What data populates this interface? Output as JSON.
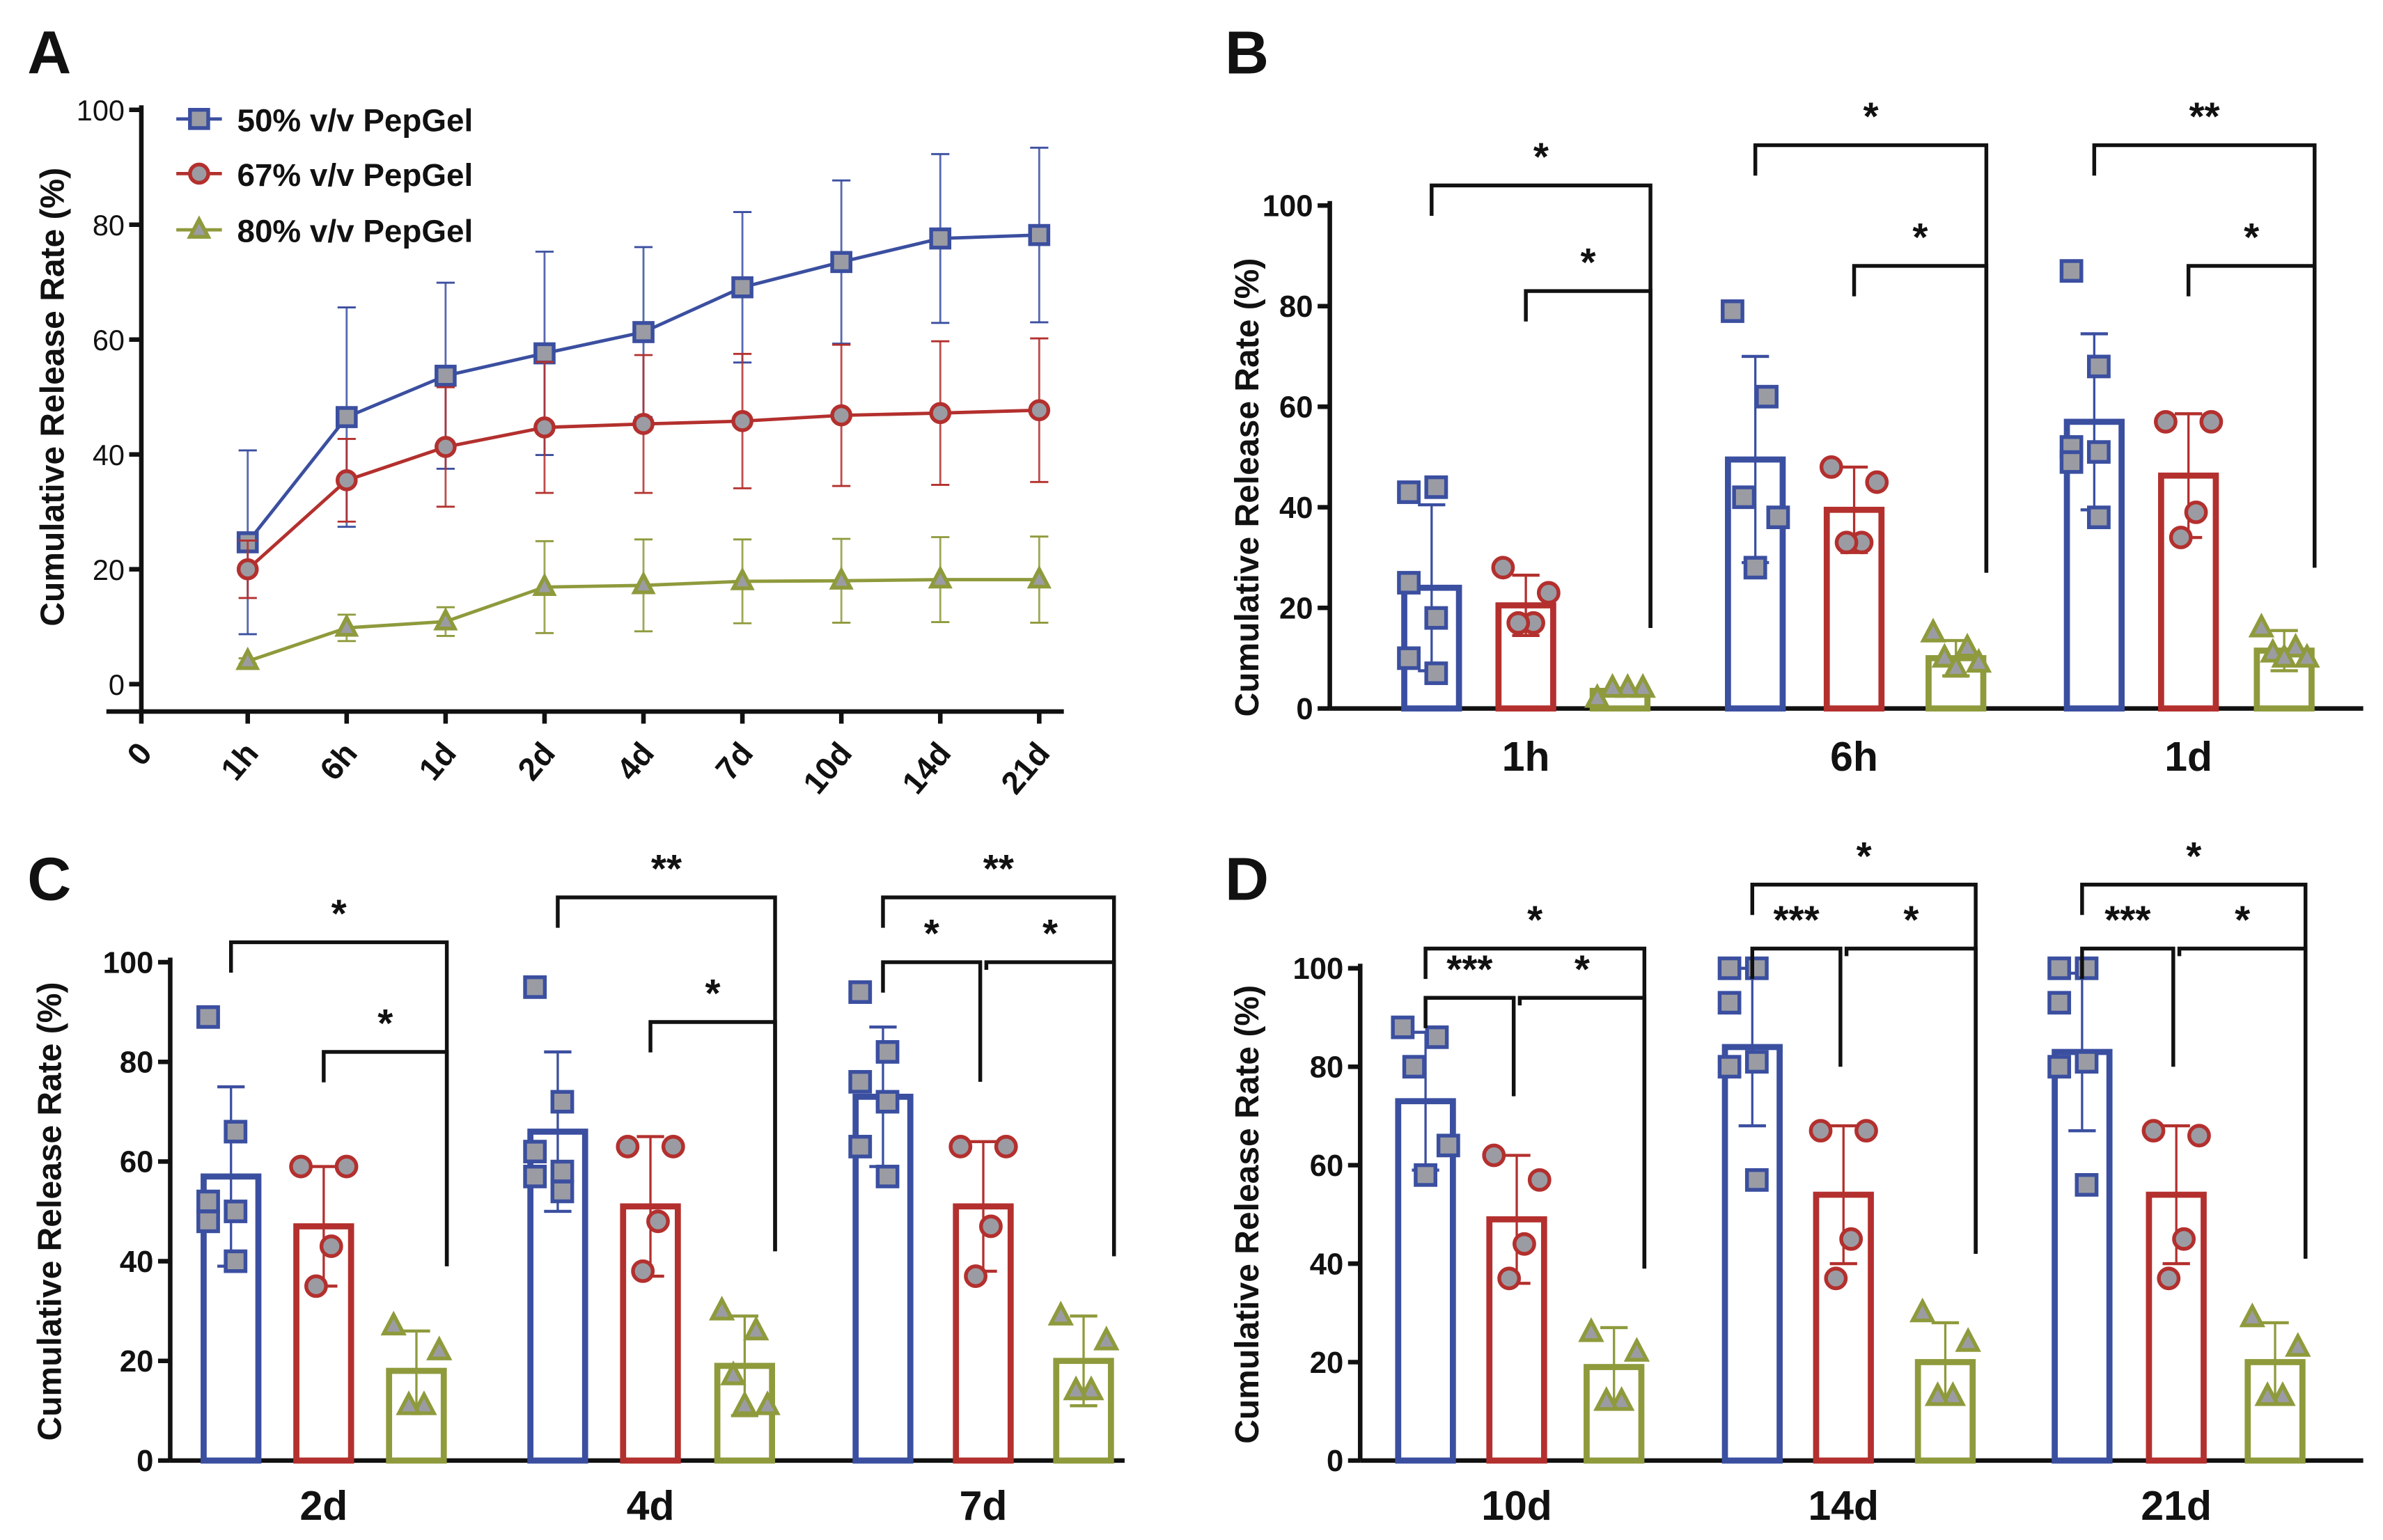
{
  "colors": {
    "blue": "#3b4fa0",
    "red": "#b3302e",
    "green": "#8f9a3c",
    "marker_fill": "#9b9ca3",
    "axis": "#111111"
  },
  "chart_data": [
    {
      "panel": "A",
      "type": "line",
      "ylabel": "Cumulative Release Rate (%)",
      "ylim": [
        0,
        100
      ],
      "yticks": [
        "0",
        "20",
        "40",
        "60",
        "80",
        "100"
      ],
      "categories": [
        "0",
        "1h",
        "6h",
        "1d",
        "2d",
        "4d",
        "7d",
        "10d",
        "14d",
        "21d"
      ],
      "legend_position": "top-left",
      "series": [
        {
          "name": "50% v/v PepGel",
          "marker": "square",
          "color": "#3b4fa0",
          "mean": [
            null,
            24.7,
            46.5,
            53.7,
            57.6,
            61.3,
            69.1,
            73.5,
            77.6,
            78.2
          ],
          "sd": [
            null,
            16.0,
            19.1,
            16.2,
            17.7,
            14.8,
            13.1,
            14.2,
            14.7,
            15.2
          ]
        },
        {
          "name": "67% v/v PepGel",
          "marker": "circle",
          "color": "#b3302e",
          "mean": [
            null,
            20.0,
            35.5,
            41.3,
            44.7,
            45.3,
            45.8,
            46.8,
            47.2,
            47.7
          ],
          "sd": [
            null,
            5.0,
            7.2,
            10.4,
            11.4,
            12.0,
            11.7,
            12.3,
            12.5,
            12.5
          ]
        },
        {
          "name": "80% v/v PepGel",
          "marker": "triangle",
          "color": "#8f9a3c",
          "mean": [
            null,
            4.0,
            9.8,
            10.9,
            16.9,
            17.2,
            17.9,
            18.0,
            18.2,
            18.2
          ],
          "sd": [
            null,
            0.5,
            2.3,
            2.5,
            8.0,
            8.0,
            7.3,
            7.3,
            7.4,
            7.5
          ]
        }
      ]
    },
    {
      "panel": "B",
      "type": "bar",
      "ylabel": "Cumulative Release Rate (%)",
      "ylim": [
        0,
        100
      ],
      "yticks": [
        "0",
        "20",
        "40",
        "60",
        "80",
        "100"
      ],
      "categories": [
        "1h",
        "6h",
        "1d"
      ],
      "groups": [
        {
          "bars": [
            {
              "mean": 24.0,
              "sd": 16.5,
              "points": [
                43,
                44,
                25,
                18,
                10,
                7
              ]
            },
            {
              "mean": 20.5,
              "sd": 6.0,
              "points": [
                28,
                23,
                17,
                17
              ]
            },
            {
              "mean": 3.5,
              "sd": 0.5,
              "points": [
                2,
                4,
                4,
                4
              ]
            }
          ],
          "significance": [
            {
              "from": 0,
              "to": 2,
              "y": 104,
              "label": "*"
            },
            {
              "from": 1,
              "to": 2,
              "y": 83,
              "label": "*"
            }
          ]
        },
        {
          "bars": [
            {
              "mean": 49.5,
              "sd": 20.5,
              "points": [
                79,
                62,
                42,
                38,
                28
              ]
            },
            {
              "mean": 39.5,
              "sd": 8.5,
              "points": [
                48,
                45,
                33,
                33
              ]
            },
            {
              "mean": 10.0,
              "sd": 3.5,
              "points": [
                15,
                12,
                10,
                9,
                8
              ]
            }
          ],
          "significance": [
            {
              "from": 0,
              "to": 2,
              "y": 112,
              "label": "*"
            },
            {
              "from": 1,
              "to": 2,
              "y": 88,
              "label": "*"
            }
          ]
        },
        {
          "bars": [
            {
              "mean": 57.0,
              "sd": 17.5,
              "points": [
                87,
                68,
                52,
                51,
                49,
                38
              ]
            },
            {
              "mean": 46.3,
              "sd": 12.3,
              "points": [
                57,
                57,
                39,
                34
              ]
            },
            {
              "mean": 11.5,
              "sd": 4.0,
              "points": [
                16,
                12,
                11,
                10,
                10
              ]
            }
          ],
          "significance": [
            {
              "from": 0,
              "to": 2,
              "y": 112,
              "label": "**"
            },
            {
              "from": 1,
              "to": 2,
              "y": 88,
              "label": "*"
            }
          ]
        }
      ]
    },
    {
      "panel": "C",
      "type": "bar",
      "ylabel": "Cumulative Release Rate (%)",
      "ylim": [
        0,
        100
      ],
      "yticks": [
        "0",
        "20",
        "40",
        "60",
        "80",
        "100"
      ],
      "categories": [
        "2d",
        "4d",
        "7d"
      ],
      "groups": [
        {
          "bars": [
            {
              "mean": 57.0,
              "sd": 18.0,
              "points": [
                89,
                66,
                52,
                50,
                48,
                40
              ]
            },
            {
              "mean": 47.0,
              "sd": 12.0,
              "points": [
                59,
                59,
                43,
                35
              ]
            },
            {
              "mean": 18.0,
              "sd": 8.0,
              "points": [
                27,
                22,
                11,
                11
              ]
            }
          ],
          "significance": [
            {
              "from": 0,
              "to": 2,
              "y": 104,
              "label": "*"
            },
            {
              "from": 1,
              "to": 2,
              "y": 82,
              "label": "*"
            }
          ]
        },
        {
          "bars": [
            {
              "mean": 66.0,
              "sd": 16.0,
              "points": [
                95,
                72,
                62,
                58,
                57,
                54
              ]
            },
            {
              "mean": 51.0,
              "sd": 14.0,
              "points": [
                63,
                63,
                48,
                38
              ]
            },
            {
              "mean": 19.0,
              "sd": 10.0,
              "points": [
                30,
                26,
                17,
                11,
                11
              ]
            }
          ],
          "significance": [
            {
              "from": 0,
              "to": 2,
              "y": 113,
              "label": "**"
            },
            {
              "from": 1,
              "to": 2,
              "y": 88,
              "label": "*"
            }
          ]
        },
        {
          "bars": [
            {
              "mean": 73.0,
              "sd": 14.0,
              "points": [
                94,
                82,
                76,
                72,
                63,
                57
              ]
            },
            {
              "mean": 51.0,
              "sd": 13.0,
              "points": [
                63,
                63,
                47,
                37
              ]
            },
            {
              "mean": 20.0,
              "sd": 9.0,
              "points": [
                29,
                24,
                14,
                14
              ]
            }
          ],
          "significance": [
            {
              "from": 0,
              "to": 2,
              "y": 113,
              "label": "**"
            },
            {
              "from": 0,
              "to": 1,
              "y": 100,
              "label": "*"
            },
            {
              "from": 1,
              "to": 2,
              "y": 100,
              "label": "*"
            }
          ]
        }
      ]
    },
    {
      "panel": "D",
      "type": "bar",
      "ylabel": "Cumulative Release Rate (%)",
      "ylim": [
        0,
        100
      ],
      "yticks": [
        "0",
        "20",
        "40",
        "60",
        "80",
        "100"
      ],
      "categories": [
        "10d",
        "14d",
        "21d"
      ],
      "groups": [
        {
          "bars": [
            {
              "mean": 73.0,
              "sd": 14.0,
              "points": [
                88,
                86,
                80,
                64,
                58
              ]
            },
            {
              "mean": 49.0,
              "sd": 13.0,
              "points": [
                62,
                57,
                44,
                37
              ]
            },
            {
              "mean": 19.0,
              "sd": 8.0,
              "points": [
                26,
                22,
                12,
                12
              ]
            }
          ],
          "significance": [
            {
              "from": 0,
              "to": 2,
              "y": 104,
              "label": "*"
            },
            {
              "from": 0,
              "to": 1,
              "y": 94,
              "label": "***"
            },
            {
              "from": 1,
              "to": 2,
              "y": 94,
              "label": "*"
            }
          ]
        },
        {
          "bars": [
            {
              "mean": 84.0,
              "sd": 16.0,
              "points": [
                100,
                100,
                93,
                81,
                80,
                57
              ]
            },
            {
              "mean": 54.0,
              "sd": 14.0,
              "points": [
                67,
                67,
                45,
                37
              ]
            },
            {
              "mean": 20.0,
              "sd": 8.0,
              "points": [
                30,
                24,
                13,
                13
              ]
            }
          ],
          "significance": [
            {
              "from": 0,
              "to": 2,
              "y": 117,
              "label": "*"
            },
            {
              "from": 0,
              "to": 1,
              "y": 104,
              "label": "***"
            },
            {
              "from": 1,
              "to": 2,
              "y": 104,
              "label": "*"
            }
          ]
        },
        {
          "bars": [
            {
              "mean": 83.0,
              "sd": 16.0,
              "points": [
                100,
                100,
                93,
                81,
                80,
                56
              ]
            },
            {
              "mean": 54.0,
              "sd": 14.0,
              "points": [
                67,
                66,
                45,
                37
              ]
            },
            {
              "mean": 20.0,
              "sd": 8.0,
              "points": [
                29,
                23,
                13,
                13
              ]
            }
          ],
          "significance": [
            {
              "from": 0,
              "to": 2,
              "y": 117,
              "label": "*"
            },
            {
              "from": 0,
              "to": 1,
              "y": 104,
              "label": "***"
            },
            {
              "from": 1,
              "to": 2,
              "y": 104,
              "label": "*"
            }
          ]
        }
      ]
    }
  ]
}
